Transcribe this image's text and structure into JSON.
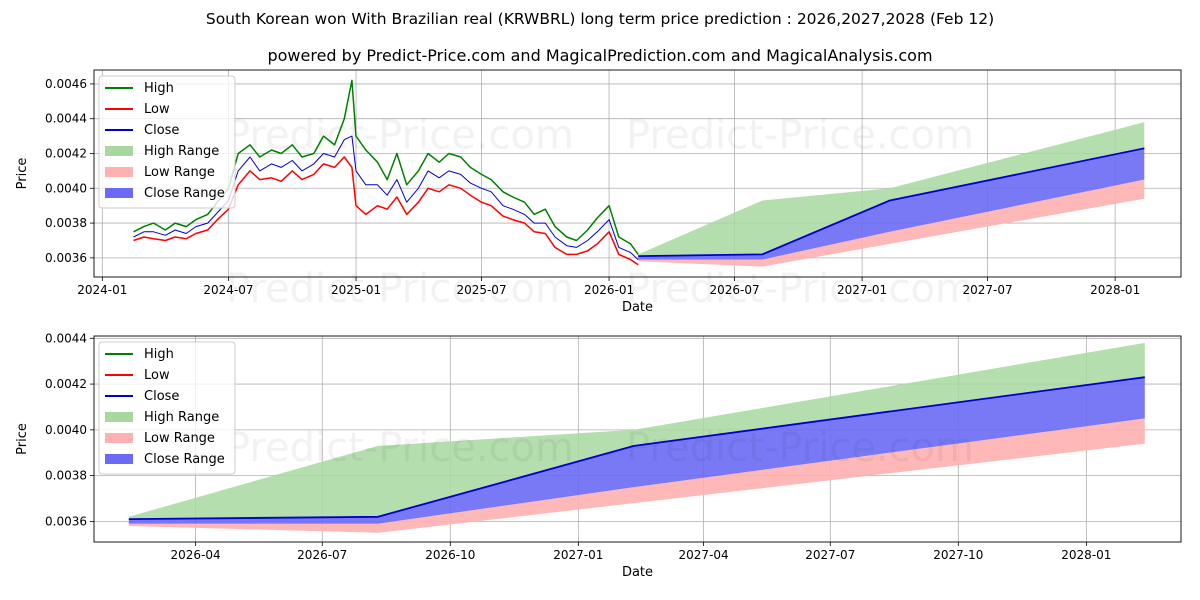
{
  "header": {
    "title": "South Korean won With Brazilian real (KRWBRL) long term price prediction : 2026,2027,2028 (Feb 12)",
    "subtitle": "powered by Predict-Price.com and MagicalPrediction.com and MagicalAnalysis.com"
  },
  "watermark": "Predict-Price.com",
  "colors": {
    "high": "#008000",
    "low": "#ff0000",
    "close": "#0000cc",
    "high_range": "#a8d8a0",
    "low_range": "#ffb0b0",
    "close_range": "#6a6af5",
    "grid": "#b0b0b0"
  },
  "legend": [
    {
      "label": "High",
      "kind": "line",
      "color": "#008000"
    },
    {
      "label": "Low",
      "kind": "line",
      "color": "#ff0000"
    },
    {
      "label": "Close",
      "kind": "line",
      "color": "#0000cc"
    },
    {
      "label": "High Range",
      "kind": "patch",
      "color": "#a8d8a0"
    },
    {
      "label": "Low Range",
      "kind": "patch",
      "color": "#ffb0b0"
    },
    {
      "label": "Close Range",
      "kind": "patch",
      "color": "#6a6af5"
    }
  ],
  "chart_data": [
    {
      "id": "top",
      "type": "line",
      "xlabel": "Date",
      "ylabel": "Price",
      "xlim": [
        "2023-12-20",
        "2028-04-05"
      ],
      "ylim": [
        0.00349,
        0.00468
      ],
      "x_ticks": [
        {
          "date": "2024-01-01",
          "label": "2024-01"
        },
        {
          "date": "2024-07-01",
          "label": "2024-07"
        },
        {
          "date": "2025-01-01",
          "label": "2025-01"
        },
        {
          "date": "2025-07-01",
          "label": "2025-07"
        },
        {
          "date": "2026-01-01",
          "label": "2026-01"
        },
        {
          "date": "2026-07-01",
          "label": "2026-07"
        },
        {
          "date": "2027-01-01",
          "label": "2027-01"
        },
        {
          "date": "2027-07-01",
          "label": "2027-07"
        },
        {
          "date": "2028-01-01",
          "label": "2028-01"
        }
      ],
      "y_ticks": [
        {
          "value": 0.0036,
          "label": "0.0036"
        },
        {
          "value": 0.0038,
          "label": "0.0038"
        },
        {
          "value": 0.004,
          "label": "0.0040"
        },
        {
          "value": 0.0042,
          "label": "0.0042"
        },
        {
          "value": 0.0044,
          "label": "0.0044"
        },
        {
          "value": 0.0046,
          "label": "0.0046"
        }
      ],
      "history": {
        "dates": [
          "2024-02-15",
          "2024-03-01",
          "2024-03-15",
          "2024-04-01",
          "2024-04-15",
          "2024-05-01",
          "2024-05-15",
          "2024-06-01",
          "2024-06-15",
          "2024-07-01",
          "2024-07-15",
          "2024-08-01",
          "2024-08-15",
          "2024-09-01",
          "2024-09-15",
          "2024-10-01",
          "2024-10-15",
          "2024-11-01",
          "2024-11-15",
          "2024-12-01",
          "2024-12-15",
          "2024-12-26",
          "2025-01-01",
          "2025-01-15",
          "2025-02-01",
          "2025-02-15",
          "2025-03-01",
          "2025-03-15",
          "2025-04-01",
          "2025-04-15",
          "2025-05-01",
          "2025-05-15",
          "2025-06-01",
          "2025-06-15",
          "2025-07-01",
          "2025-07-15",
          "2025-08-01",
          "2025-08-15",
          "2025-09-01",
          "2025-09-15",
          "2025-10-01",
          "2025-10-15",
          "2025-11-01",
          "2025-11-15",
          "2025-12-01",
          "2025-12-15",
          "2026-01-01",
          "2026-01-15",
          "2026-02-01",
          "2026-02-12"
        ],
        "high": [
          0.00375,
          0.00378,
          0.0038,
          0.00376,
          0.0038,
          0.00378,
          0.00382,
          0.00385,
          0.00392,
          0.004,
          0.0042,
          0.00425,
          0.00418,
          0.00422,
          0.0042,
          0.00425,
          0.00418,
          0.0042,
          0.0043,
          0.00425,
          0.0044,
          0.00462,
          0.0043,
          0.00422,
          0.00415,
          0.00405,
          0.0042,
          0.00402,
          0.0041,
          0.0042,
          0.00415,
          0.0042,
          0.00418,
          0.00412,
          0.00408,
          0.00405,
          0.00398,
          0.00395,
          0.00392,
          0.00385,
          0.00388,
          0.00378,
          0.00372,
          0.0037,
          0.00376,
          0.00383,
          0.0039,
          0.00372,
          0.00368,
          0.00362
        ],
        "low": [
          0.0037,
          0.00372,
          0.00371,
          0.0037,
          0.00372,
          0.00371,
          0.00374,
          0.00376,
          0.00382,
          0.00388,
          0.00402,
          0.0041,
          0.00405,
          0.00406,
          0.00404,
          0.0041,
          0.00405,
          0.00408,
          0.00414,
          0.00412,
          0.00418,
          0.00412,
          0.0039,
          0.00385,
          0.0039,
          0.00388,
          0.00395,
          0.00385,
          0.00392,
          0.004,
          0.00398,
          0.00402,
          0.004,
          0.00396,
          0.00392,
          0.0039,
          0.00384,
          0.00382,
          0.0038,
          0.00375,
          0.00374,
          0.00366,
          0.00362,
          0.00362,
          0.00364,
          0.00368,
          0.00375,
          0.00362,
          0.00359,
          0.00356
        ],
        "close": [
          0.00372,
          0.00375,
          0.00375,
          0.00373,
          0.00376,
          0.00374,
          0.00378,
          0.0038,
          0.00386,
          0.00393,
          0.0041,
          0.00418,
          0.0041,
          0.00414,
          0.00412,
          0.00416,
          0.0041,
          0.00414,
          0.0042,
          0.00418,
          0.00428,
          0.0043,
          0.0041,
          0.00402,
          0.00402,
          0.00396,
          0.00405,
          0.00392,
          0.004,
          0.0041,
          0.00406,
          0.0041,
          0.00408,
          0.00403,
          0.004,
          0.00398,
          0.0039,
          0.00388,
          0.00385,
          0.0038,
          0.0038,
          0.00372,
          0.00367,
          0.00366,
          0.0037,
          0.00375,
          0.00382,
          0.00366,
          0.00363,
          0.00359
        ]
      },
      "forecast": {
        "dates": [
          "2026-02-12",
          "2026-08-10",
          "2027-02-10",
          "2028-02-12"
        ],
        "high_range_upper": [
          0.00362,
          0.00393,
          0.004,
          0.00438
        ],
        "high_range_lower": [
          0.00361,
          0.00362,
          0.00393,
          0.00423
        ],
        "close": [
          0.00361,
          0.00362,
          0.00393,
          0.00423
        ],
        "close_range_lower": [
          0.00359,
          0.00359,
          0.00375,
          0.00405
        ],
        "low_range_lower": [
          0.00358,
          0.00355,
          0.00368,
          0.00394
        ]
      }
    },
    {
      "id": "bottom",
      "type": "line",
      "xlabel": "Date",
      "ylabel": "Price",
      "xlim": [
        "2026-01-18",
        "2028-03-09"
      ],
      "ylim": [
        0.00351,
        0.00441
      ],
      "x_ticks": [
        {
          "date": "2026-04-01",
          "label": "2026-04"
        },
        {
          "date": "2026-07-01",
          "label": "2026-07"
        },
        {
          "date": "2026-10-01",
          "label": "2026-10"
        },
        {
          "date": "2027-01-01",
          "label": "2027-01"
        },
        {
          "date": "2027-04-01",
          "label": "2027-04"
        },
        {
          "date": "2027-07-01",
          "label": "2027-07"
        },
        {
          "date": "2027-10-01",
          "label": "2027-10"
        },
        {
          "date": "2028-01-01",
          "label": "2028-01"
        }
      ],
      "y_ticks": [
        {
          "value": 0.0036,
          "label": "0.0036"
        },
        {
          "value": 0.0038,
          "label": "0.0038"
        },
        {
          "value": 0.004,
          "label": "0.0040"
        },
        {
          "value": 0.0042,
          "label": "0.0042"
        },
        {
          "value": 0.0044,
          "label": "0.0044"
        }
      ],
      "forecast": {
        "dates": [
          "2026-02-12",
          "2026-08-10",
          "2027-02-10",
          "2028-02-12"
        ],
        "high_range_upper": [
          0.00362,
          0.00393,
          0.004,
          0.00438
        ],
        "high_range_lower": [
          0.00361,
          0.00362,
          0.00393,
          0.00423
        ],
        "close": [
          0.00361,
          0.00362,
          0.00393,
          0.00423
        ],
        "close_range_lower": [
          0.00359,
          0.00359,
          0.00375,
          0.00405
        ],
        "low_range_lower": [
          0.00358,
          0.00355,
          0.00368,
          0.00394
        ]
      }
    }
  ]
}
